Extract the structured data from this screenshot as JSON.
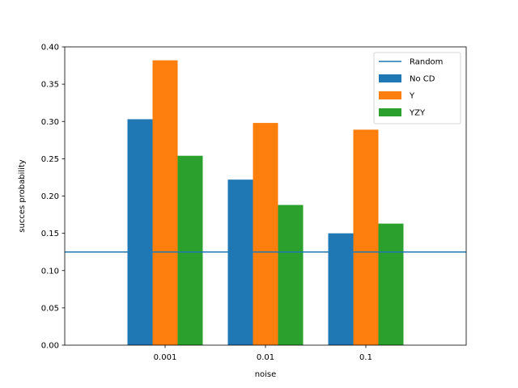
{
  "chart_data": {
    "type": "bar",
    "title": "",
    "xlabel": "noise",
    "ylabel": "succes probability",
    "categories": [
      "0.001",
      "0.01",
      "0.1"
    ],
    "series": [
      {
        "name": "No CD",
        "color": "#1f77b4",
        "values": [
          0.303,
          0.222,
          0.15
        ]
      },
      {
        "name": "Y",
        "color": "#ff7f0e",
        "values": [
          0.382,
          0.298,
          0.289
        ]
      },
      {
        "name": "YZY",
        "color": "#2ca02c",
        "values": [
          0.254,
          0.188,
          0.163
        ]
      }
    ],
    "reference_line": {
      "name": "Random",
      "value": 0.125,
      "color": "#1f77b4"
    },
    "ylim": [
      0,
      0.4
    ],
    "yticks": [
      "0.00",
      "0.05",
      "0.10",
      "0.15",
      "0.20",
      "0.25",
      "0.30",
      "0.35",
      "0.40"
    ],
    "ytick_values": [
      0,
      0.05,
      0.1,
      0.15,
      0.2,
      0.25,
      0.3,
      0.35,
      0.4
    ],
    "legend_position": "top-right",
    "grid": false
  }
}
